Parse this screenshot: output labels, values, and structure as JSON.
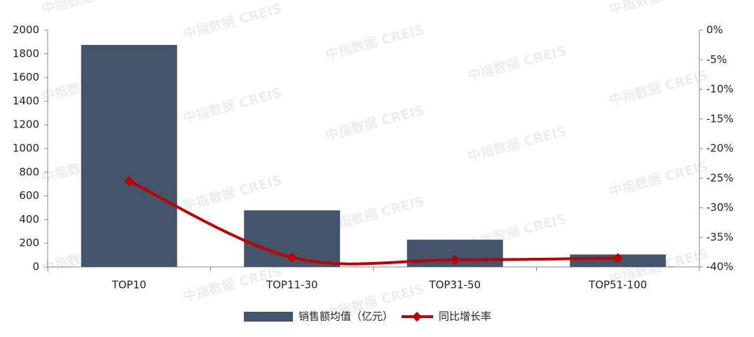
{
  "chart_data": {
    "type": "bar_line",
    "categories": [
      "TOP10",
      "TOP11-30",
      "TOP31-50",
      "TOP51-100"
    ],
    "series": [
      {
        "name": "销售额均值（亿元）",
        "type": "bar",
        "color": "#44546a",
        "values": [
          1875,
          478,
          230,
          105
        ]
      },
      {
        "name": "同比增长率",
        "type": "line",
        "axis": "y2",
        "color": "#c00000",
        "values": [
          -25.5,
          -38.4,
          -38.8,
          -38.5
        ]
      }
    ],
    "ylim": [
      0,
      2000
    ],
    "yticks": [
      0,
      200,
      400,
      600,
      800,
      1000,
      1200,
      1400,
      1600,
      1800,
      2000
    ],
    "y2lim": [
      -40,
      0
    ],
    "y2ticks": [
      {
        "value": 0,
        "label": "0%"
      },
      {
        "value": -5,
        "label": "-5%"
      },
      {
        "value": -10,
        "label": "-10%"
      },
      {
        "value": -15,
        "label": "-15%"
      },
      {
        "value": -20,
        "label": "-20%"
      },
      {
        "value": -25,
        "label": "-25%"
      },
      {
        "value": -30,
        "label": "-30%"
      },
      {
        "value": -35,
        "label": "-35%"
      },
      {
        "value": -40,
        "label": "-40%"
      }
    ],
    "legend": "bottom",
    "watermark": "中指数据 CREIS"
  }
}
